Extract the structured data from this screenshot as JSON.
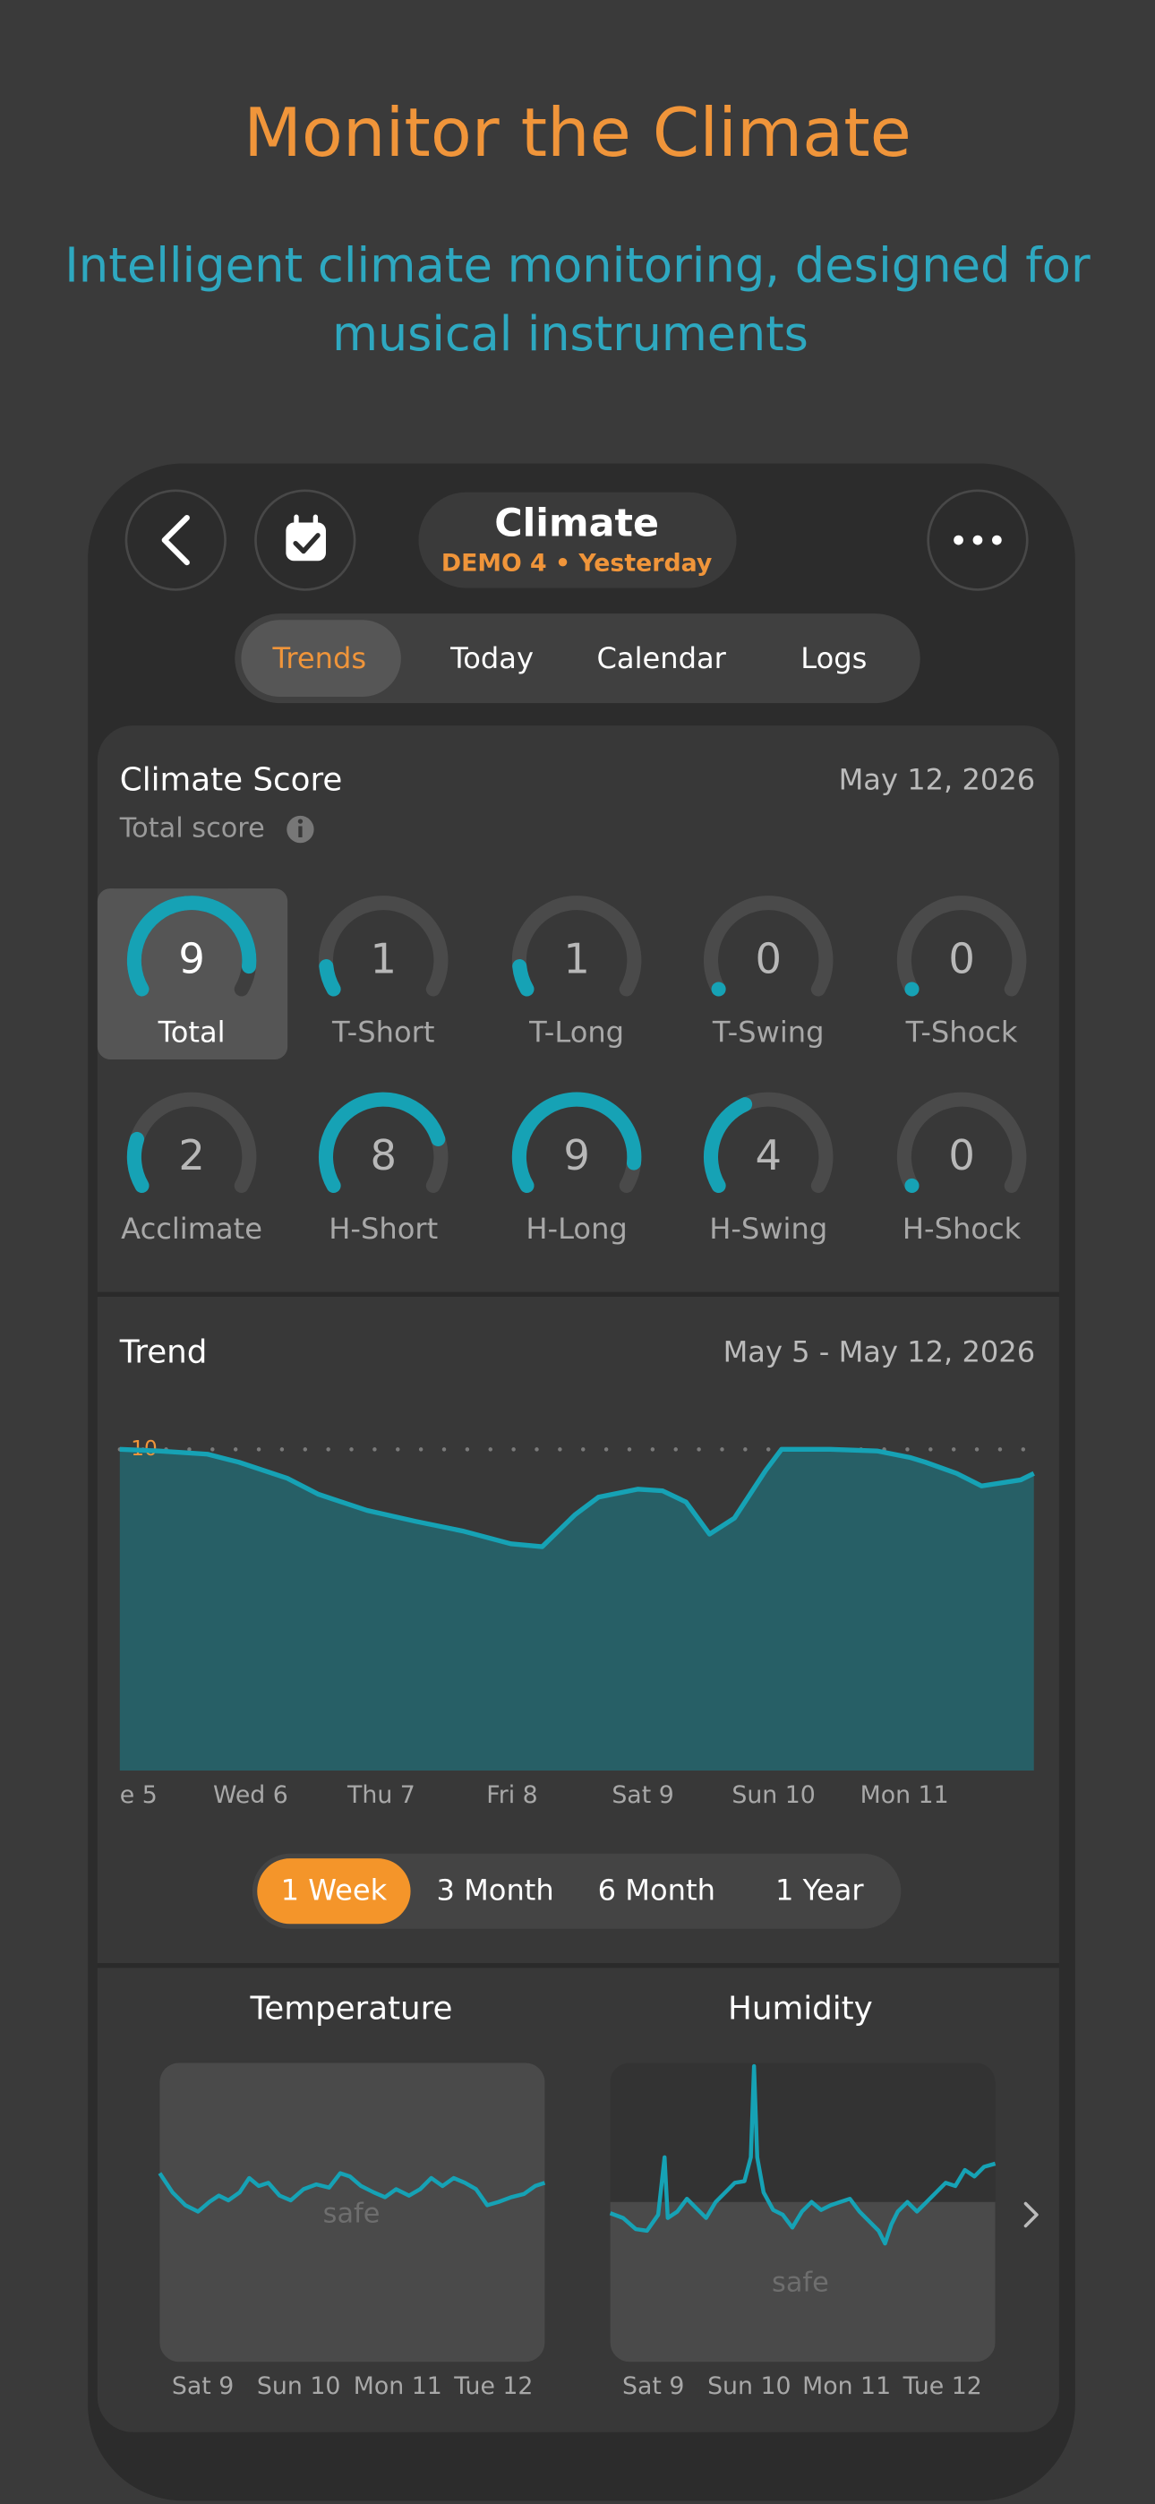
{
  "header": {
    "title": "Monitor the Climate",
    "subtitle_lines": [
      "Intelligent climate monitoring, designed for",
      "musical instruments"
    ]
  },
  "nav": {
    "title": "Climate",
    "subtitle": "DEMO 4 • Yesterday"
  },
  "tabs": {
    "items": [
      "Trends",
      "Today",
      "Calendar",
      "Logs"
    ],
    "selected": 0
  },
  "score": {
    "title": "Climate Score",
    "date": "May 12, 2026",
    "subtitle": "Total score",
    "scale": [
      0,
      10
    ],
    "selected": 0,
    "gauges": [
      {
        "label": "Total",
        "value": 9
      },
      {
        "label": "T-Short",
        "value": 1
      },
      {
        "label": "T-Long",
        "value": 1
      },
      {
        "label": "T-Swing",
        "value": 0
      },
      {
        "label": "T-Shock",
        "value": 0
      },
      {
        "label": "Acclimate",
        "value": 2
      },
      {
        "label": "H-Short",
        "value": 8
      },
      {
        "label": "H-Long",
        "value": 9
      },
      {
        "label": "H-Swing",
        "value": 4
      },
      {
        "label": "H-Shock",
        "value": 0
      }
    ]
  },
  "trend": {
    "type": "area",
    "title": "Trend",
    "date_range": "May 5 - May 12, 2026",
    "x": [
      5.0,
      5.3,
      5.67,
      5.91,
      6.28,
      6.52,
      6.89,
      7.26,
      7.62,
      7.99,
      8.23,
      8.48,
      8.66,
      8.96,
      9.15,
      9.33,
      9.51,
      9.7,
      9.94,
      10.06,
      10.43,
      10.79,
      11.04,
      11.16,
      11.4,
      11.59,
      11.89,
      11.99
    ],
    "values": [
      10.0,
      9.95,
      9.85,
      9.6,
      9.1,
      8.6,
      8.1,
      7.76,
      7.46,
      7.06,
      6.97,
      7.96,
      8.51,
      8.76,
      8.71,
      8.36,
      7.36,
      7.86,
      9.35,
      10.0,
      10.0,
      9.95,
      9.75,
      9.6,
      9.25,
      8.86,
      9.05,
      9.25
    ],
    "color": "#16a2b5",
    "xlim": [
      5,
      12
    ],
    "xticks": [
      {
        "value": 5,
        "label": "e 5"
      },
      {
        "value": 6,
        "label": "Wed 6"
      },
      {
        "value": 7,
        "label": "Thu 7"
      },
      {
        "value": 8,
        "label": "Fri 8"
      },
      {
        "value": 9,
        "label": "Sat 9"
      },
      {
        "value": 10,
        "label": "Sun 10"
      },
      {
        "value": 11,
        "label": "Mon 11"
      }
    ],
    "ylim": [
      0,
      10
    ],
    "yticks": [
      10
    ]
  },
  "ranges": {
    "items": [
      "1 Week",
      "3 Month",
      "6 Month",
      "1 Year"
    ],
    "selected": 0
  },
  "mini_charts": [
    {
      "title": "Temperature",
      "zone_label": "safe",
      "xticks": [
        "Sat 9",
        "Sun 10",
        "Mon 11",
        "Tue 12"
      ]
    },
    {
      "title": "Humidity",
      "zone_label": "safe",
      "xticks": [
        "Sat 9",
        "Sun 10",
        "Mon 11",
        "Tue 12"
      ]
    }
  ]
}
